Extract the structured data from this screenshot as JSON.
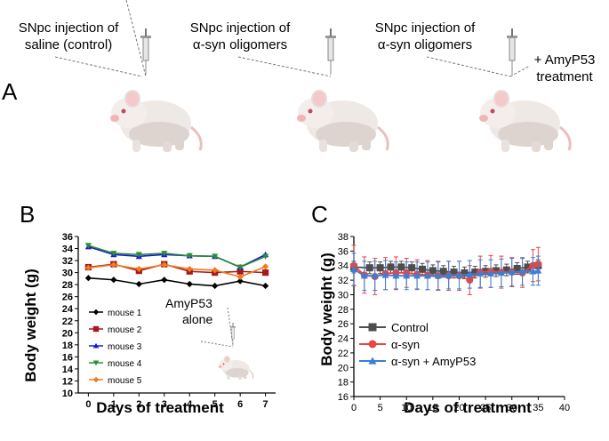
{
  "panel_a": {
    "letter": "A",
    "groups": [
      {
        "line1": "SNpc injection of",
        "line2": "saline (control)",
        "extra1": "",
        "extra2": ""
      },
      {
        "line1": "SNpc injection of",
        "line2": "α-syn oligomers",
        "extra1": "",
        "extra2": ""
      },
      {
        "line1": "SNpc injection of",
        "line2": "α-syn oligomers",
        "extra1": "+ AmyP53",
        "extra2": "treatment"
      }
    ]
  },
  "panel_b_letter": "B",
  "panel_c_letter": "C",
  "panel_b_annotation": {
    "line1": "AmyP53",
    "line2": "alone"
  },
  "colors": {
    "mouse1": "#000000",
    "mouse2": "#a51a1a",
    "mouse3": "#1a1ad6",
    "mouse4": "#2e8b3a",
    "mouse5": "#f07a1e",
    "control": "#4d4d4d",
    "asyn": "#e84545",
    "asyn_amyp53": "#3a7fd6"
  },
  "chart_data": [
    {
      "type": "line",
      "panel": "B",
      "xlabel": "Days of treatment",
      "ylabel": "Body weight (g)",
      "x": [
        0,
        1,
        2,
        3,
        4,
        5,
        6,
        7
      ],
      "xticks": [
        "0",
        "1",
        "2",
        "3",
        "4",
        "5",
        "6",
        "7"
      ],
      "xlim": [
        -0.4,
        7.4
      ],
      "ylim": [
        10,
        36
      ],
      "yticks": [
        "10",
        "12",
        "14",
        "16",
        "18",
        "20",
        "22",
        "24",
        "26",
        "28",
        "30",
        "32",
        "34",
        "36"
      ],
      "legend_position": "middle-left",
      "series": [
        {
          "name": "mouse 1",
          "marker": "diamond",
          "color_key": "mouse1",
          "values": [
            29.1,
            28.8,
            28.1,
            28.8,
            28.1,
            27.8,
            28.6,
            27.8
          ]
        },
        {
          "name": "mouse 2",
          "marker": "square",
          "color_key": "mouse2",
          "values": [
            30.9,
            31.4,
            30.3,
            31.4,
            30.2,
            30.0,
            30.2,
            30.0
          ]
        },
        {
          "name": "mouse 3",
          "marker": "triangle",
          "color_key": "mouse3",
          "values": [
            34.3,
            33.0,
            32.7,
            33.0,
            32.8,
            32.7,
            30.9,
            33.0
          ]
        },
        {
          "name": "mouse 4",
          "marker": "triangle-down",
          "color_key": "mouse4",
          "values": [
            34.5,
            33.2,
            33.0,
            33.2,
            32.8,
            32.7,
            30.9,
            32.7
          ]
        },
        {
          "name": "mouse 5",
          "marker": "diamond",
          "color_key": "mouse5",
          "values": [
            30.8,
            31.3,
            30.6,
            31.3,
            30.6,
            30.4,
            29.3,
            31.0
          ]
        }
      ]
    },
    {
      "type": "line",
      "panel": "C",
      "xlabel": "Days of treatment",
      "ylabel": "Body weight (g)",
      "xlim": [
        0,
        40
      ],
      "xticks": [
        "0",
        "5",
        "10",
        "15",
        "20",
        "25",
        "30",
        "35",
        "40"
      ],
      "ylim": [
        16,
        38
      ],
      "yticks": [
        "16",
        "18",
        "20",
        "22",
        "24",
        "26",
        "28",
        "30",
        "32",
        "34",
        "36",
        "38"
      ],
      "legend_position": "lower-left",
      "series": [
        {
          "name": "Control",
          "marker": "square",
          "color_key": "control",
          "x": [
            0,
            3,
            5,
            7,
            9,
            11,
            13,
            15,
            17,
            19,
            21,
            23,
            25,
            27,
            29,
            31,
            33,
            35
          ],
          "values": [
            33.8,
            33.7,
            33.7,
            33.8,
            33.8,
            33.7,
            33.5,
            33.3,
            33.2,
            33.1,
            33.0,
            33.1,
            33.2,
            33.3,
            33.4,
            33.6,
            33.8,
            34.0
          ],
          "errors": [
            0.8,
            0.8,
            0.8,
            0.8,
            0.8,
            0.8,
            0.8,
            0.8,
            0.8,
            0.8,
            0.8,
            0.8,
            0.8,
            0.8,
            0.8,
            0.8,
            0.8,
            0.8
          ]
        },
        {
          "name": "α-syn",
          "marker": "circle",
          "color_key": "asyn",
          "x": [
            0,
            2,
            4,
            6,
            8,
            10,
            12,
            14,
            16,
            18,
            20,
            22,
            24,
            26,
            28,
            30,
            32,
            34,
            35
          ],
          "values": [
            34.0,
            32.7,
            32.5,
            32.9,
            33.0,
            33.0,
            32.8,
            32.7,
            32.6,
            32.6,
            32.6,
            32.0,
            33.1,
            33.2,
            33.1,
            33.1,
            33.0,
            34.0,
            34.2
          ],
          "errors": [
            2.8,
            2.5,
            2.5,
            2.2,
            2.2,
            2.0,
            2.0,
            2.0,
            2.0,
            2.0,
            2.0,
            2.0,
            2.2,
            2.2,
            2.2,
            2.0,
            2.0,
            2.2,
            2.3
          ]
        },
        {
          "name": "α-syn + AmyP53",
          "marker": "triangle",
          "color_key": "asyn_amyp53",
          "x": [
            0,
            2,
            4,
            6,
            8,
            10,
            12,
            14,
            16,
            18,
            20,
            22,
            24,
            26,
            28,
            30,
            32,
            34,
            35
          ],
          "values": [
            33.5,
            32.6,
            32.6,
            32.7,
            32.6,
            32.6,
            32.6,
            32.6,
            32.6,
            32.7,
            32.7,
            32.8,
            32.9,
            32.9,
            33.0,
            33.1,
            33.2,
            33.2,
            33.3
          ],
          "errors": [
            2.2,
            2.0,
            2.0,
            2.0,
            1.9,
            1.9,
            1.9,
            1.9,
            1.9,
            1.9,
            1.9,
            1.9,
            1.9,
            1.9,
            1.9,
            1.9,
            1.9,
            1.9,
            2.0
          ]
        }
      ]
    }
  ]
}
